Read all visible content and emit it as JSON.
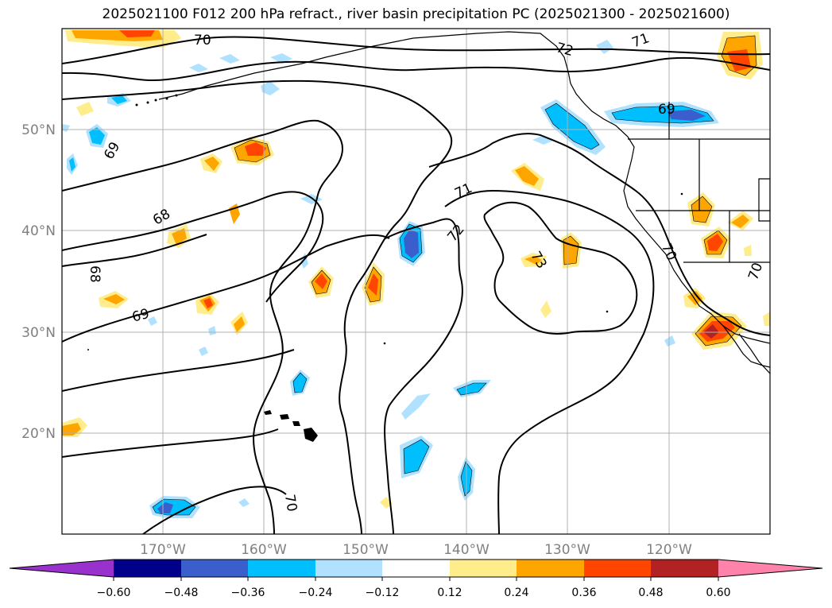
{
  "title": "2025021100 F012 200 hPa refract., river basin precipitation PC (2025021300 - 2025021600)",
  "map": {
    "lon_range": [
      -180,
      -110
    ],
    "lat_range": [
      10,
      60
    ],
    "lat_ticks": [
      {
        "value": 50,
        "label": "50°N"
      },
      {
        "value": 40,
        "label": "40°N"
      },
      {
        "value": 30,
        "label": "30°N"
      },
      {
        "value": 20,
        "label": "20°N"
      }
    ],
    "lon_ticks": [
      {
        "value": -170,
        "label": "170°W"
      },
      {
        "value": -160,
        "label": "160°W"
      },
      {
        "value": -150,
        "label": "150°W"
      },
      {
        "value": -140,
        "label": "140°W"
      },
      {
        "value": -130,
        "label": "130°W"
      },
      {
        "value": -120,
        "label": "120°W"
      }
    ],
    "grid": true,
    "coastlines": true,
    "contour_labels": [
      "70",
      "72",
      "71",
      "69",
      "69",
      "68",
      "71",
      "72",
      "73",
      "70",
      "70",
      "69",
      "68",
      "70"
    ]
  },
  "colorbar": {
    "ticks": [
      "−0.60",
      "−0.48",
      "−0.36",
      "−0.24",
      "−0.12",
      "0.12",
      "0.24",
      "0.36",
      "0.48",
      "0.60"
    ],
    "colors": [
      "#9932cc",
      "#00008b",
      "#3a5fcd",
      "#00bfff",
      "#b0e2ff",
      "#ffffff",
      "#ffec8b",
      "#ffa500",
      "#ff4500",
      "#b22222",
      "#ff82ab"
    ]
  }
}
